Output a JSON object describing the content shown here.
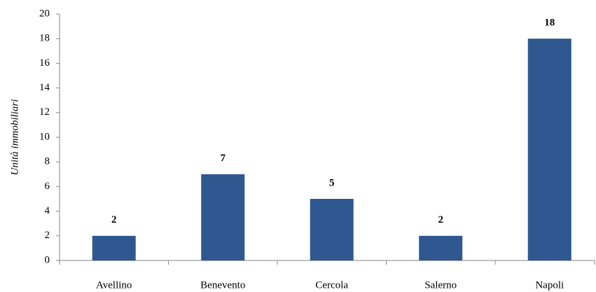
{
  "chart_data": {
    "type": "bar",
    "y_label": "Unità immobiliari",
    "categories": [
      "Avellino",
      "Benevento",
      "Cercola",
      "Salerno",
      "Napoli"
    ],
    "values": [
      2,
      7,
      5,
      2,
      18
    ],
    "color": "#2f5890",
    "ylim": [
      0,
      20
    ],
    "yticks": [
      0,
      2,
      4,
      6,
      8,
      10,
      12,
      14,
      16,
      18,
      20
    ],
    "grid": false
  }
}
